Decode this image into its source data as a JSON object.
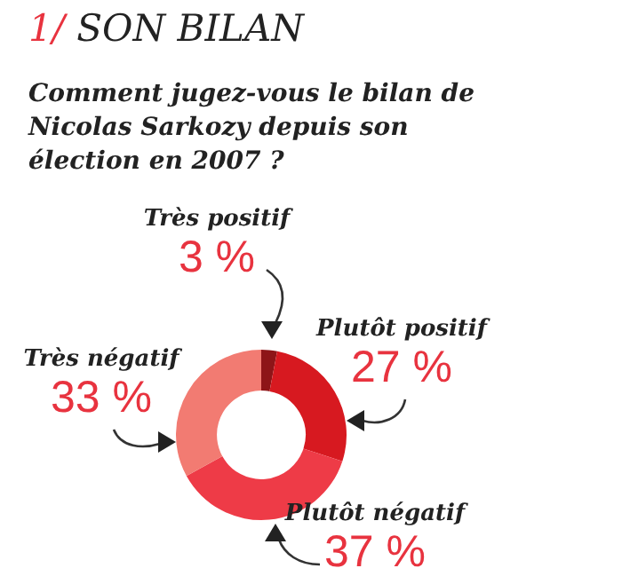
{
  "chart_data": {
    "type": "donut",
    "title": "1/ SON BILAN",
    "subtitle": "Comment jugez-vous le bilan de Nicolas Sarkozy depuis son élection en 2007 ?",
    "categories": [
      "Très positif",
      "Plutôt positif",
      "Plutôt négatif",
      "Très négatif"
    ],
    "values": [
      3,
      27,
      37,
      33
    ],
    "colors": [
      "#8e1518",
      "#d71920",
      "#ee3b47",
      "#f27b72"
    ],
    "value_labels": [
      "3 %",
      "27 %",
      "37 %",
      "33 %"
    ]
  }
}
